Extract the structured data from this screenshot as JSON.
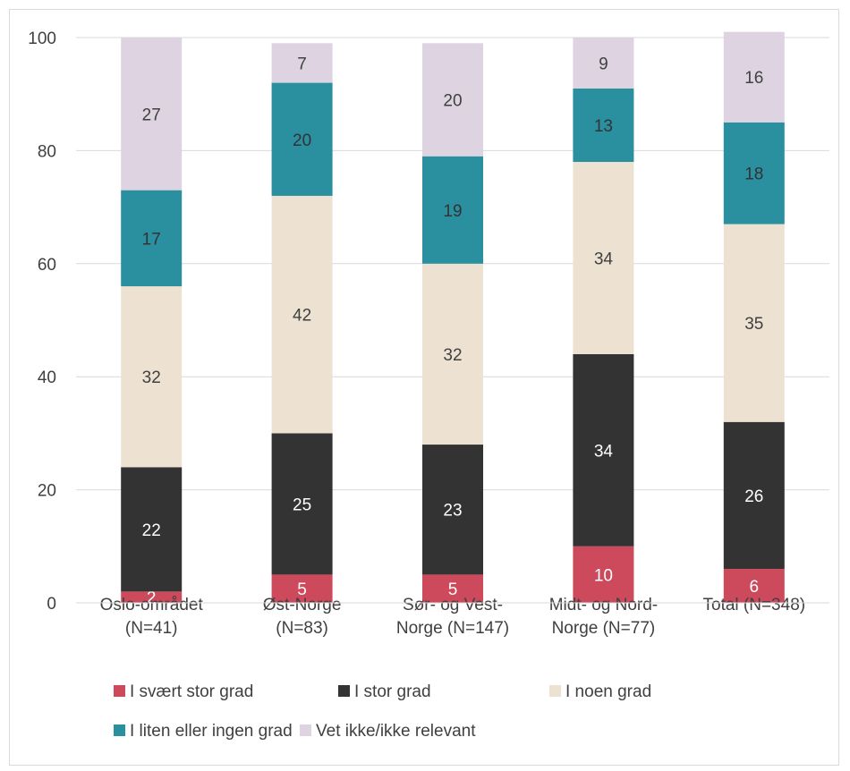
{
  "chart_data": {
    "type": "bar",
    "stacked": true,
    "title": "",
    "xlabel": "",
    "ylabel": "",
    "ylim": [
      0,
      100
    ],
    "yticks": [
      0,
      20,
      40,
      60,
      80,
      100
    ],
    "grid": "horizontal",
    "legend_position": "bottom",
    "categories": [
      [
        "Oslo-området",
        "(N=41)"
      ],
      [
        "Øst-Norge",
        "(N=83)"
      ],
      [
        "Sør- og Vest-",
        "Norge (N=147)"
      ],
      [
        "Midt- og Nord-",
        "Norge (N=77)"
      ],
      [
        "Total (N=348)"
      ]
    ],
    "series": [
      {
        "name": "I svært stor grad",
        "color": "#cd4a5c",
        "label_color": "#ffffff",
        "values": [
          2,
          5,
          5,
          10,
          6
        ]
      },
      {
        "name": "I stor grad",
        "color": "#333333",
        "label_color": "#ffffff",
        "values": [
          22,
          25,
          23,
          34,
          26
        ]
      },
      {
        "name": "I noen grad",
        "color": "#ede2d1",
        "label_color": "#404040",
        "values": [
          32,
          42,
          32,
          34,
          35
        ]
      },
      {
        "name": "I liten eller ingen grad",
        "color": "#2a8f9f",
        "label_color": "#333333",
        "values": [
          17,
          20,
          19,
          13,
          18
        ]
      },
      {
        "name": "Vet ikke/ikke relevant",
        "color": "#ddd3e1",
        "label_color": "#404040",
        "values": [
          27,
          7,
          20,
          9,
          16
        ]
      }
    ]
  }
}
